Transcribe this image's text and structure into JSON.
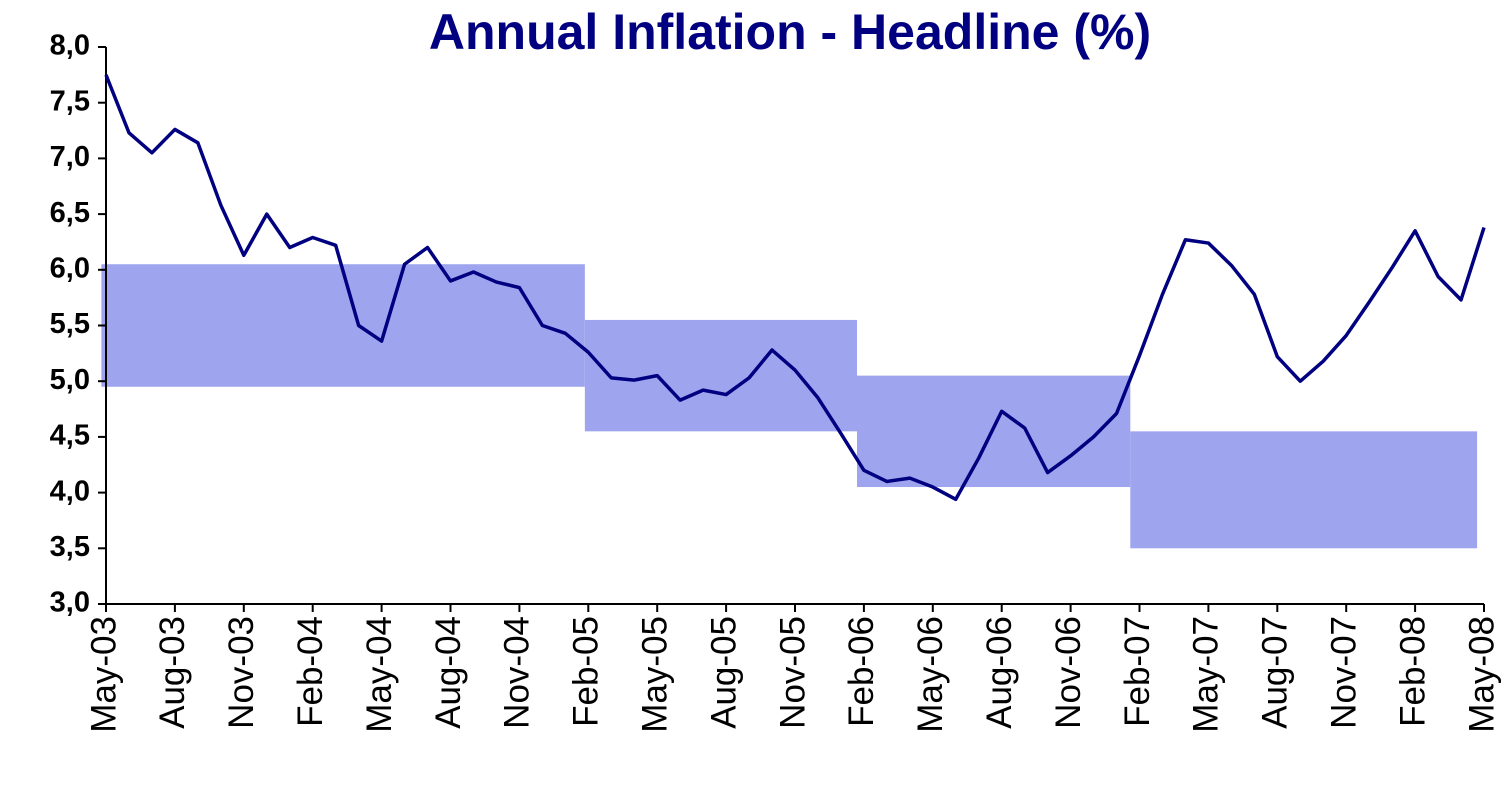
{
  "chart_data": {
    "type": "line",
    "title": "Annual Inflation - Headline  (%)",
    "categories": [
      "May-03",
      null,
      null,
      "Aug-03",
      null,
      null,
      "Nov-03",
      null,
      null,
      "Feb-04",
      null,
      null,
      "May-04",
      null,
      null,
      "Aug-04",
      null,
      null,
      "Nov-04",
      null,
      null,
      "Feb-05",
      null,
      null,
      "May-05",
      null,
      null,
      "Aug-05",
      null,
      null,
      "Nov-05",
      null,
      null,
      "Feb-06",
      null,
      null,
      "May-06",
      null,
      null,
      "Aug-06",
      null,
      null,
      "Nov-06",
      null,
      null,
      "Feb-07",
      null,
      null,
      "May-07",
      null,
      null,
      "Aug-07",
      null,
      null,
      "Nov-07",
      null,
      null,
      "Feb-08",
      null,
      null,
      "May-08"
    ],
    "series": [
      {
        "color": "#000080",
        "values": [
          7.75,
          7.23,
          7.05,
          7.26,
          7.14,
          6.58,
          6.13,
          6.5,
          6.2,
          6.29,
          6.22,
          5.5,
          5.36,
          6.05,
          6.2,
          5.9,
          5.98,
          5.89,
          5.84,
          5.5,
          5.43,
          5.26,
          5.03,
          5.01,
          5.05,
          4.83,
          4.92,
          4.88,
          5.03,
          5.28,
          5.1,
          4.85,
          4.53,
          4.2,
          4.1,
          4.13,
          4.05,
          3.94,
          4.31,
          4.73,
          4.58,
          4.18,
          4.33,
          4.5,
          4.71,
          5.23,
          5.78,
          6.27,
          6.24,
          6.04,
          5.78,
          5.22,
          5.0,
          5.18,
          5.41,
          5.71,
          6.02,
          6.35,
          5.94,
          5.73,
          6.38
        ]
      }
    ],
    "bands": [
      {
        "x": [
          -0.2,
          20.85
        ],
        "y": [
          4.95,
          6.05
        ]
      },
      {
        "x": [
          20.85,
          32.7
        ],
        "y": [
          4.55,
          5.55
        ]
      },
      {
        "x": [
          32.7,
          44.6
        ],
        "y": [
          4.05,
          5.05
        ]
      },
      {
        "x": [
          44.6,
          59.7
        ],
        "y": [
          3.5,
          4.55
        ]
      }
    ],
    "band_color": "#9ea4ee",
    "ylim": [
      3,
      8
    ],
    "yticks": [
      {
        "value": 3,
        "label": "3,0"
      },
      {
        "value": 3.5,
        "label": "3,5"
      },
      {
        "value": 4,
        "label": "4,0"
      },
      {
        "value": 4.5,
        "label": "4,5"
      },
      {
        "value": 5,
        "label": "5,0"
      },
      {
        "value": 5.5,
        "label": "5,5"
      },
      {
        "value": 6,
        "label": "6,0"
      },
      {
        "value": 6.5,
        "label": "6,5"
      },
      {
        "value": 7,
        "label": "7,0"
      },
      {
        "value": 7.5,
        "label": "7,5"
      },
      {
        "value": 8,
        "label": "8,0"
      }
    ],
    "grid": false
  }
}
